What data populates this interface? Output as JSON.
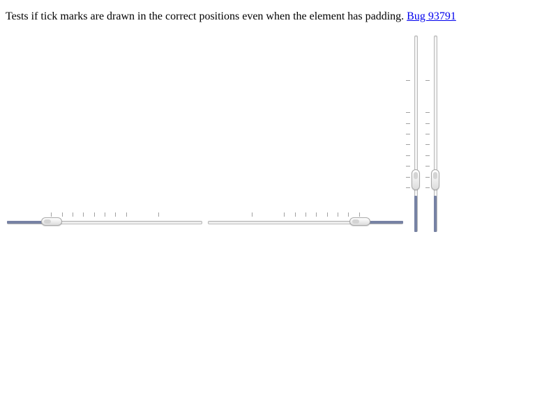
{
  "description": {
    "text": "Tests if tick marks are drawn in the correct positions even when the element has padding.",
    "link_label": "Bug 93791"
  },
  "colors": {
    "fill": "#7782a4",
    "link": "#0000ee"
  },
  "sliders": [
    {
      "orientation": "horizontal",
      "direction": "ltr",
      "value": 20,
      "ticks": [
        20,
        26,
        32,
        38,
        44,
        50,
        56,
        62,
        80
      ]
    },
    {
      "orientation": "horizontal",
      "direction": "rtl",
      "value": 20,
      "ticks": [
        20,
        26,
        32,
        38,
        44,
        50,
        56,
        62,
        80
      ]
    },
    {
      "orientation": "vertical",
      "direction": "btt",
      "value": 20,
      "ticks": [
        20,
        26,
        32,
        38,
        44,
        50,
        56,
        62,
        80
      ]
    },
    {
      "orientation": "vertical",
      "direction": "btt",
      "value": 20,
      "ticks": [
        20,
        26,
        32,
        38,
        44,
        50,
        56,
        62,
        80
      ]
    }
  ]
}
